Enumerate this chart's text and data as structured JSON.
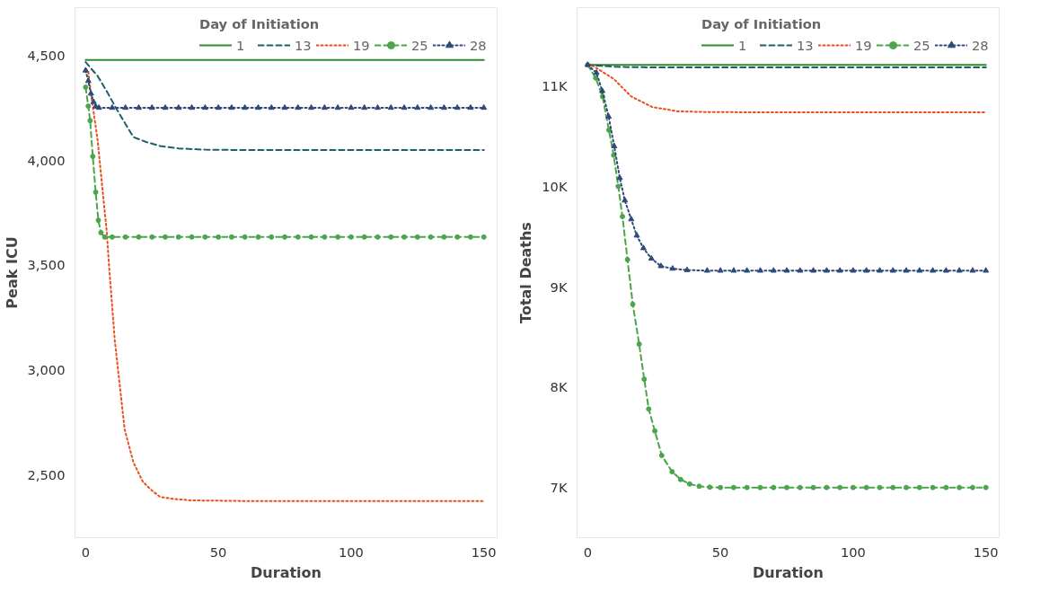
{
  "chart_data": [
    {
      "type": "line",
      "xlabel": "Duration",
      "ylabel": "Peak ICU",
      "legend_title": "Day of Initiation",
      "legend": "top right",
      "grid": false,
      "xlim": [
        -4,
        155
      ],
      "xticks": [
        0,
        50,
        100,
        150
      ],
      "ylim": [
        2200,
        4730
      ],
      "yticks": [
        {
          "value": 2500,
          "label": "2,500"
        },
        {
          "value": 3000,
          "label": "3,000"
        },
        {
          "value": 3500,
          "label": "3,500"
        },
        {
          "value": 4000,
          "label": "4,000"
        },
        {
          "value": 4500,
          "label": "4,500"
        }
      ],
      "series": [
        {
          "name": "1",
          "color": "#2e8b2e",
          "line_style": "solid",
          "marker": "none",
          "x": [
            0,
            50,
            100,
            150
          ],
          "values": [
            4480,
            4480,
            4480,
            4480
          ]
        },
        {
          "name": "13",
          "color": "#1f5f6b",
          "line_style": "dashed",
          "marker": "none",
          "x": [
            0,
            2,
            4.5,
            8,
            11.3,
            15,
            18,
            23,
            28,
            35,
            45,
            60,
            150
          ],
          "values": [
            4470,
            4440,
            4404,
            4330,
            4254,
            4175,
            4112,
            4088,
            4070,
            4058,
            4052,
            4050,
            4050
          ]
        },
        {
          "name": "19",
          "color": "#e8501e",
          "line_style": "dotted",
          "marker": "none",
          "x": [
            0,
            1,
            2,
            4.5,
            6.8,
            7.9,
            8.9,
            11,
            14.7,
            18,
            21.6,
            25,
            28,
            33,
            40,
            60,
            100,
            150
          ],
          "values": [
            4440,
            4425,
            4320,
            4100,
            3807,
            3669,
            3486,
            3140,
            2717,
            2560,
            2466,
            2425,
            2395,
            2385,
            2378,
            2375,
            2375,
            2375
          ]
        },
        {
          "name": "25",
          "color": "#4ca54c",
          "line_style": "dashed",
          "marker": "circle",
          "x": [
            0,
            1,
            1.7,
            2.7,
            3.8,
            4.8,
            5.8,
            7.2,
            10,
            15,
            20,
            25,
            30,
            35,
            40,
            45,
            50,
            55,
            60,
            65,
            70,
            75,
            80,
            85,
            90,
            95,
            100,
            105,
            110,
            115,
            120,
            125,
            130,
            135,
            140,
            145,
            150
          ],
          "values": [
            4350,
            4260,
            4191,
            4020,
            3849,
            3715,
            3656,
            3635,
            3635,
            3635,
            3635,
            3635,
            3635,
            3635,
            3635,
            3635,
            3635,
            3635,
            3635,
            3635,
            3635,
            3635,
            3635,
            3635,
            3635,
            3635,
            3635,
            3635,
            3635,
            3635,
            3635,
            3635,
            3635,
            3635,
            3635,
            3635,
            3635
          ]
        },
        {
          "name": "28",
          "color": "#2f4a7a",
          "line_style": "dotted",
          "marker": "triangle",
          "x": [
            0,
            1,
            2,
            3,
            3.8,
            5,
            10,
            15,
            20,
            25,
            30,
            35,
            40,
            45,
            50,
            55,
            60,
            65,
            70,
            75,
            80,
            85,
            90,
            95,
            100,
            105,
            110,
            115,
            120,
            125,
            130,
            135,
            140,
            145,
            150
          ],
          "values": [
            4430,
            4380,
            4320,
            4280,
            4258,
            4252,
            4252,
            4252,
            4252,
            4252,
            4252,
            4252,
            4252,
            4252,
            4252,
            4252,
            4252,
            4252,
            4252,
            4252,
            4252,
            4252,
            4252,
            4252,
            4252,
            4252,
            4252,
            4252,
            4252,
            4252,
            4252,
            4252,
            4252,
            4252,
            4252
          ]
        }
      ]
    },
    {
      "type": "line",
      "xlabel": "Duration",
      "ylabel": "Total Deaths",
      "legend_title": "Day of Initiation",
      "legend": "top right",
      "grid": false,
      "xlim": [
        -4,
        155
      ],
      "xticks": [
        0,
        50,
        100,
        150
      ],
      "ylim": [
        6500,
        11780
      ],
      "yticks": [
        {
          "value": 7000,
          "label": "7K"
        },
        {
          "value": 8000,
          "label": "8K"
        },
        {
          "value": 9000,
          "label": "9K"
        },
        {
          "value": 10000,
          "label": "10K"
        },
        {
          "value": 11000,
          "label": "11K"
        }
      ],
      "series": [
        {
          "name": "1",
          "color": "#2e8b2e",
          "line_style": "solid",
          "marker": "none",
          "x": [
            0,
            50,
            100,
            150
          ],
          "values": [
            11210,
            11210,
            11210,
            11210
          ]
        },
        {
          "name": "13",
          "color": "#1f5f6b",
          "line_style": "dashed",
          "marker": "none",
          "x": [
            0,
            5,
            10,
            15,
            25,
            150
          ],
          "values": [
            11210,
            11200,
            11192,
            11188,
            11185,
            11185
          ]
        },
        {
          "name": "19",
          "color": "#e8501e",
          "line_style": "dotted",
          "marker": "none",
          "x": [
            0,
            2.3,
            5,
            9.8,
            16.4,
            24.3,
            34,
            45,
            60,
            150
          ],
          "values": [
            11210,
            11195,
            11150,
            11070,
            10895,
            10790,
            10747,
            10740,
            10738,
            10738
          ]
        },
        {
          "name": "25",
          "color": "#4ca54c",
          "line_style": "dashed",
          "marker": "circle",
          "x": [
            0,
            3,
            5.6,
            8,
            9.8,
            11.5,
            13.1,
            15,
            17,
            19.4,
            21.3,
            23,
            25.3,
            27.9,
            31.8,
            35,
            38.4,
            42,
            46,
            50,
            55,
            60,
            65,
            70,
            75,
            80,
            85,
            90,
            95,
            100,
            105,
            110,
            115,
            120,
            125,
            130,
            135,
            140,
            145,
            150
          ],
          "values": [
            11210,
            11080,
            10895,
            10560,
            10310,
            10000,
            9699,
            9270,
            8825,
            8428,
            8079,
            7782,
            7563,
            7319,
            7157,
            7080,
            7035,
            7012,
            7003,
            7000,
            7000,
            7000,
            7000,
            7000,
            7000,
            7000,
            7000,
            7000,
            7000,
            7000,
            7000,
            7000,
            7000,
            7000,
            7000,
            7000,
            7000,
            7000,
            7000,
            7000
          ]
        },
        {
          "name": "28",
          "color": "#2f4a7a",
          "line_style": "dotted",
          "marker": "triangle",
          "x": [
            0,
            3.3,
            5.5,
            7.9,
            10,
            12.1,
            14,
            16.4,
            18.5,
            21,
            24,
            27.6,
            32,
            37.4,
            45,
            50,
            55,
            60,
            65,
            70,
            75,
            80,
            85,
            90,
            95,
            100,
            105,
            110,
            115,
            120,
            125,
            130,
            135,
            140,
            145,
            150
          ],
          "values": [
            11210,
            11131,
            10950,
            10694,
            10400,
            10083,
            9860,
            9672,
            9510,
            9384,
            9280,
            9205,
            9180,
            9166,
            9160,
            9160,
            9160,
            9160,
            9160,
            9160,
            9160,
            9160,
            9160,
            9160,
            9160,
            9160,
            9160,
            9160,
            9160,
            9160,
            9160,
            9160,
            9160,
            9160,
            9160,
            9160
          ]
        }
      ]
    }
  ]
}
